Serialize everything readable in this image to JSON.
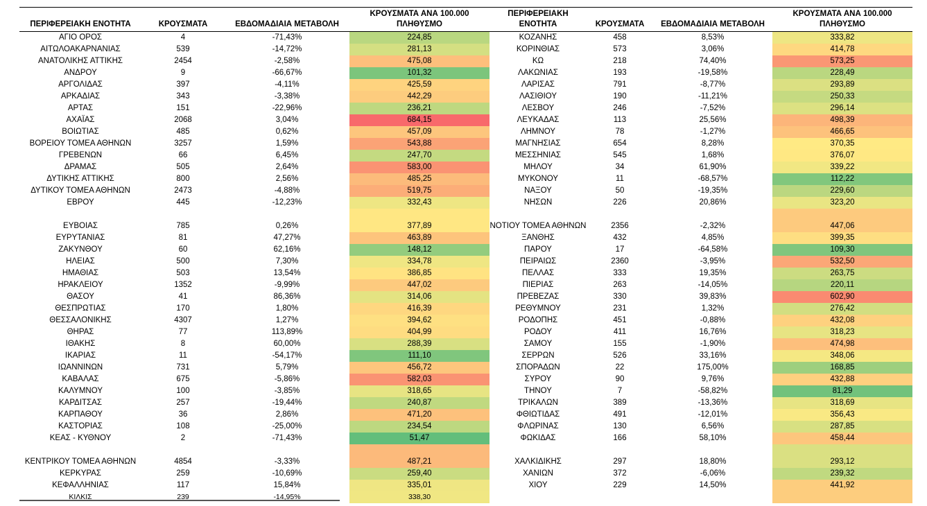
{
  "headers": {
    "left": [
      "ΠΕΡΙΦΕΡΕΙΑΚΗ ΕΝΟΤΗΤΑ",
      "ΚΡΟΥΣΜΑΤΑ",
      "ΕΒΔΟΜΑΔΙΑΙΑ ΜΕΤΑΒΟΛΗ",
      "ΚΡΟΥΣΜΑΤΑ ΑΝΑ 100.000 ΠΛΗΘΥΣΜΟ"
    ],
    "right": [
      "ΠΕΡΙΦΕΡΕΙΑΚΗ ΕΝΟΤΗΤΑ",
      "ΚΡΟΥΣΜΑΤΑ",
      "ΕΒΔΟΜΑΔΙΑΙΑ ΜΕΤΑΒΟΛΗ",
      "ΚΡΟΥΣΜΑΤΑ ΑΝΑ 100.000 ΠΛΗΘΥΣΜΟ"
    ]
  },
  "colors": {
    "green": "#63be7b",
    "yellow": "#ffeb84",
    "red": "#f8696b",
    "scale_min": 51.47,
    "scale_max": 684.15
  },
  "left_rows": [
    [
      "ΑΓΙΟ ΟΡΟΣ",
      "4",
      "-71,43%",
      "224,85"
    ],
    [
      "ΑΙΤΩΛΟΑΚΑΡΝΑΝΙΑΣ",
      "539",
      "-14,72%",
      "281,13"
    ],
    [
      "ΑΝΑΤΟΛΙΚΗΣ ΑΤΤΙΚΗΣ",
      "2454",
      "-2,58%",
      "475,08"
    ],
    [
      "ΑΝΔΡΟΥ",
      "9",
      "-66,67%",
      "101,32"
    ],
    [
      "ΑΡΓΟΛΙΔΑΣ",
      "397",
      "-4,11%",
      "425,59"
    ],
    [
      "ΑΡΚΑΔΙΑΣ",
      "343",
      "-3,38%",
      "442,29"
    ],
    [
      "ΑΡΤΑΣ",
      "151",
      "-22,96%",
      "236,21"
    ],
    [
      "ΑΧΑΪΑΣ",
      "2068",
      "3,04%",
      "684,15"
    ],
    [
      "ΒΟΙΩΤΙΑΣ",
      "485",
      "0,62%",
      "457,09"
    ],
    [
      "ΒΟΡΕΙΟΥ ΤΟΜΕΑ ΑΘΗΝΩΝ",
      "3257",
      "1,59%",
      "543,88"
    ],
    [
      "ΓΡΕΒΕΝΩΝ",
      "66",
      "6,45%",
      "247,70"
    ],
    [
      "ΔΡΑΜΑΣ",
      "505",
      "2,64%",
      "583,00"
    ],
    [
      "ΔΥΤΙΚΗΣ ΑΤΤΙΚΗΣ",
      "800",
      "2,56%",
      "485,25"
    ],
    [
      "ΔΥΤΙΚΟΥ ΤΟΜΕΑ ΑΘΗΝΩΝ",
      "2473",
      "-4,88%",
      "519,75"
    ],
    [
      "ΕΒΡΟΥ",
      "445",
      "-12,23%",
      "332,43"
    ],
    [
      "",
      "",
      "",
      ""
    ],
    [
      "ΕΥΒΟΙΑΣ",
      "785",
      "0,26%",
      "377,89"
    ],
    [
      "ΕΥΡΥΤΑΝΙΑΣ",
      "81",
      "47,27%",
      "463,89"
    ],
    [
      "ΖΑΚΥΝΘΟΥ",
      "60",
      "62,16%",
      "148,12"
    ],
    [
      "ΗΛΕΙΑΣ",
      "500",
      "7,30%",
      "334,78"
    ],
    [
      "ΗΜΑΘΙΑΣ",
      "503",
      "13,54%",
      "386,85"
    ],
    [
      "ΗΡΑΚΛΕΙΟΥ",
      "1352",
      "-9,99%",
      "447,02"
    ],
    [
      "ΘΑΣΟΥ",
      "41",
      "86,36%",
      "314,06"
    ],
    [
      "ΘΕΣΠΡΩΤΙΑΣ",
      "170",
      "1,80%",
      "416,39"
    ],
    [
      "ΘΕΣΣΑΛΟΝΙΚΗΣ",
      "4307",
      "1,27%",
      "394,62"
    ],
    [
      "ΘΗΡΑΣ",
      "77",
      "113,89%",
      "404,99"
    ],
    [
      "ΙΘΑΚΗΣ",
      "8",
      "60,00%",
      "288,39"
    ],
    [
      "ΙΚΑΡΙΑΣ",
      "11",
      "-54,17%",
      "111,10"
    ],
    [
      "ΙΩΑΝΝΙΝΩΝ",
      "731",
      "5,79%",
      "456,72"
    ],
    [
      "ΚΑΒΑΛΑΣ",
      "675",
      "-5,86%",
      "582,03"
    ],
    [
      "ΚΑΛΥΜΝΟΥ",
      "100",
      "-3,85%",
      "318,65"
    ],
    [
      "ΚΑΡΔΙΤΣΑΣ",
      "257",
      "-19,44%",
      "240,87"
    ],
    [
      "ΚΑΡΠΑΘΟΥ",
      "36",
      "2,86%",
      "471,20"
    ],
    [
      "ΚΑΣΤΟΡΙΑΣ",
      "108",
      "-25,00%",
      "234,54"
    ],
    [
      "ΚΕΑΣ - ΚΥΘΝΟΥ",
      "2",
      "-71,43%",
      "51,47"
    ],
    [
      "ΚΕΝΤΡΙΚΟΥ ΤΟΜΕΑ ΑΘΗΝΩΝ",
      "4854",
      "-3,33%",
      "487,21"
    ],
    [
      "ΚΕΡΚΥΡΑΣ",
      "259",
      "-10,69%",
      "259,40"
    ],
    [
      "ΚΕΦΑΛΛΗΝΙΑΣ",
      "117",
      "15,84%",
      "335,01"
    ],
    [
      "ΚΙΛΚΙΣ",
      "239",
      "-14,95%",
      "338,30"
    ]
  ],
  "right_rows": [
    [
      "ΚΟΖΑΝΗΣ",
      "458",
      "8,53%",
      "333,82"
    ],
    [
      "ΚΟΡΙΝΘΙΑΣ",
      "573",
      "3,06%",
      "414,78"
    ],
    [
      "ΚΩ",
      "218",
      "74,40%",
      "573,25"
    ],
    [
      "ΛΑΚΩΝΙΑΣ",
      "193",
      "-19,58%",
      "228,49"
    ],
    [
      "ΛΑΡΙΣΑΣ",
      "791",
      "-8,77%",
      "293,89"
    ],
    [
      "ΛΑΣΙΘΙΟΥ",
      "190",
      "-11,21%",
      "250,33"
    ],
    [
      "ΛΕΣΒΟΥ",
      "246",
      "-7,52%",
      "296,14"
    ],
    [
      "ΛΕΥΚΑΔΑΣ",
      "113",
      "25,56%",
      "498,39"
    ],
    [
      "ΛΗΜΝΟΥ",
      "78",
      "-1,27%",
      "466,65"
    ],
    [
      "ΜΑΓΝΗΣΙΑΣ",
      "654",
      "8,28%",
      "370,35"
    ],
    [
      "ΜΕΣΣΗΝΙΑΣ",
      "545",
      "1,68%",
      "376,07"
    ],
    [
      "ΜΗΛΟΥ",
      "34",
      "61,90%",
      "339,22"
    ],
    [
      "ΜΥΚΟΝΟΥ",
      "11",
      "-68,57%",
      "112,22"
    ],
    [
      "ΝΑΞΟΥ",
      "50",
      "-19,35%",
      "229,60"
    ],
    [
      "ΝΗΣΩΝ",
      "226",
      "20,86%",
      "323,20"
    ],
    [
      "",
      "",
      "",
      ""
    ],
    [
      "ΝΟΤΙΟΥ ΤΟΜΕΑ ΑΘΗΝΩΝ",
      "2356",
      "-2,32%",
      "447,06"
    ],
    [
      "ΞΑΝΘΗΣ",
      "432",
      "4,85%",
      "399,35"
    ],
    [
      "ΠΑΡΟΥ",
      "17",
      "-64,58%",
      "109,30"
    ],
    [
      "ΠΕΙΡΑΙΩΣ",
      "2360",
      "-3,95%",
      "532,50"
    ],
    [
      "ΠΕΛΛΑΣ",
      "333",
      "19,35%",
      "263,75"
    ],
    [
      "ΠΙΕΡΙΑΣ",
      "263",
      "-14,05%",
      "220,11"
    ],
    [
      "ΠΡΕΒΕΖΑΣ",
      "330",
      "39,83%",
      "602,90"
    ],
    [
      "ΡΕΘΥΜΝΟΥ",
      "231",
      "1,32%",
      "276,42"
    ],
    [
      "ΡΟΔΟΠΗΣ",
      "451",
      "-0,88%",
      "432,08"
    ],
    [
      "ΡΟΔΟΥ",
      "411",
      "16,76%",
      "318,23"
    ],
    [
      "ΣΑΜΟΥ",
      "155",
      "-1,90%",
      "474,98"
    ],
    [
      "ΣΕΡΡΩΝ",
      "526",
      "33,16%",
      "348,06"
    ],
    [
      "ΣΠΟΡΑΔΩΝ",
      "22",
      "175,00%",
      "168,85"
    ],
    [
      "ΣΥΡΟΥ",
      "90",
      "9,76%",
      "432,88"
    ],
    [
      "ΤΗΝΟΥ",
      "7",
      "-58,82%",
      "81,29"
    ],
    [
      "ΤΡΙΚΑΛΩΝ",
      "389",
      "-13,36%",
      "318,69"
    ],
    [
      "ΦΘΙΩΤΙΔΑΣ",
      "491",
      "-12,01%",
      "356,43"
    ],
    [
      "ΦΛΩΡΙΝΑΣ",
      "130",
      "6,56%",
      "287,85"
    ],
    [
      "ΦΩΚΙΔΑΣ",
      "166",
      "58,10%",
      "458,44"
    ],
    [
      "ΧΑΛΚΙΔΙΚΗΣ",
      "297",
      "18,80%",
      "293,12"
    ],
    [
      "ΧΑΝΙΩΝ",
      "372",
      "-6,06%",
      "239,32"
    ],
    [
      "ΧΙΟΥ",
      "229",
      "14,50%",
      "441,92"
    ],
    [
      "",
      "",
      "",
      ""
    ]
  ]
}
